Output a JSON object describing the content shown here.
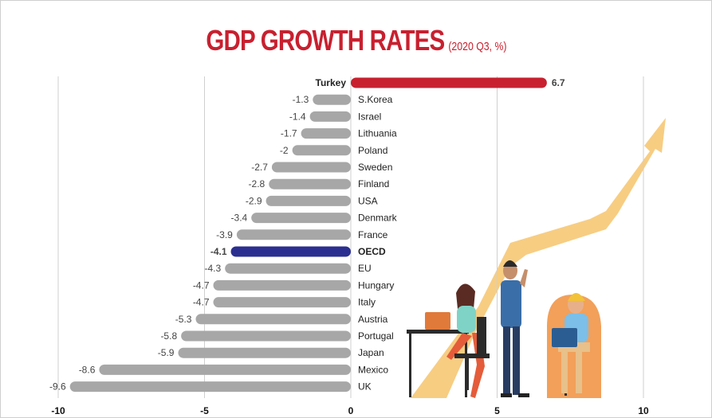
{
  "colors": {
    "title": "#c8202f",
    "bar_default": "#a7a7a7",
    "bar_turkey": "#c8202f",
    "bar_oecd": "#2b2f8f",
    "arrow": "#f6c46c",
    "gridline": "#cfcfcf"
  },
  "chart_data": {
    "type": "bar",
    "orientation": "horizontal",
    "title": "GDP GROWTH RATES",
    "subtitle": "(2020 Q3, %)",
    "xlabel": "",
    "ylabel": "",
    "xlim": [
      -10,
      10
    ],
    "xticks": [
      "-10",
      "-5",
      "0",
      "5",
      "10"
    ],
    "grid": true,
    "categories": [
      "Turkey",
      "S.Korea",
      "Israel",
      "Lithuania",
      "Poland",
      "Sweden",
      "Finland",
      "USA",
      "Denmark",
      "France",
      "OECD",
      "EU",
      "Hungary",
      "Italy",
      "Austria",
      "Portugal",
      "Japan",
      "Mexico",
      "UK"
    ],
    "values": [
      6.7,
      -1.3,
      -1.4,
      -1.7,
      -2,
      -2.7,
      -2.8,
      -2.9,
      -3.4,
      -3.9,
      -4.1,
      -4.3,
      -4.7,
      -4.7,
      -5.3,
      -5.8,
      -5.9,
      -8.6,
      -9.6
    ],
    "value_labels": [
      "6.7",
      "-1.3",
      "-1.4",
      "-1.7",
      "-2",
      "-2.7",
      "-2.8",
      "-2.9",
      "-3.4",
      "-3.9",
      "-4.1",
      "-4.3",
      "-4.7",
      "-4.7",
      "-5.3",
      "-5.8",
      "-5.9",
      "-8.6",
      "-9.6"
    ],
    "highlight": {
      "Turkey": "red",
      "OECD": "blue"
    }
  }
}
